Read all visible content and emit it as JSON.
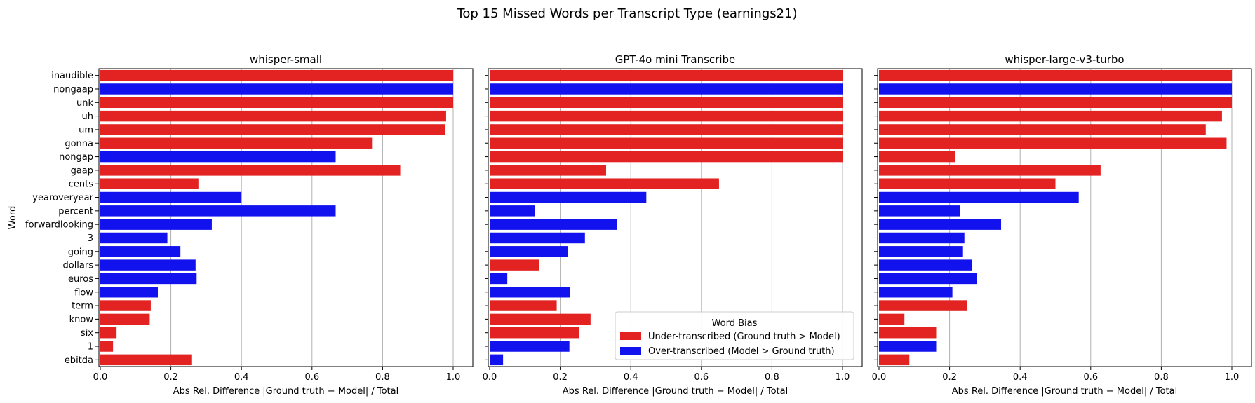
{
  "figure": {
    "suptitle": "Top 15 Missed Words per Transcript Type (earnings21)",
    "legend_title": "Word Bias",
    "legend_items": [
      {
        "label": "Under-transcribed (Ground truth > Model)",
        "color": "#e32222"
      },
      {
        "label": "Over-transcribed (Model > Ground truth)",
        "color": "#1212ee"
      }
    ]
  },
  "colors": {
    "under": "#e32222",
    "over": "#1212ee"
  },
  "chart_data": [
    {
      "type": "bar",
      "orientation": "horizontal",
      "title": "whisper-small",
      "ylabel": "Word",
      "xlabel": "Abs Rel. Difference |Ground truth − Model| / Total",
      "xlim": [
        0,
        1.05
      ],
      "xticks": [
        "0.0",
        "0.2",
        "0.4",
        "0.6",
        "0.8",
        "1.0"
      ],
      "grid": "x",
      "categories": [
        "inaudible",
        "nongaap",
        "unk",
        "uh",
        "um",
        "gonna",
        "nongap",
        "gaap",
        "cents",
        "yearoveryear",
        "percent",
        "forwardlooking",
        "3",
        "going",
        "dollars",
        "euros",
        "flow",
        "term",
        "know",
        "six",
        "1",
        "ebitda"
      ],
      "values": [
        1.0,
        1.0,
        1.0,
        0.98,
        0.978,
        0.77,
        0.667,
        0.85,
        0.278,
        0.4,
        0.667,
        0.316,
        0.19,
        0.227,
        0.27,
        0.273,
        0.163,
        0.143,
        0.14,
        0.046,
        0.036,
        0.258
      ],
      "bias": [
        "under",
        "over",
        "under",
        "under",
        "under",
        "under",
        "over",
        "under",
        "under",
        "over",
        "over",
        "over",
        "over",
        "over",
        "over",
        "over",
        "over",
        "under",
        "under",
        "under",
        "under",
        "under"
      ]
    },
    {
      "type": "bar",
      "orientation": "horizontal",
      "title": "GPT-4o mini Transcribe",
      "xlabel": "Abs Rel. Difference |Ground truth − Model| / Total",
      "xlim": [
        0,
        1.05
      ],
      "xticks": [
        "0.0",
        "0.2",
        "0.4",
        "0.6",
        "0.8",
        "1.0"
      ],
      "grid": "x",
      "legend": "lower-right",
      "categories": [
        "inaudible",
        "nongaap",
        "unk",
        "uh",
        "um",
        "gonna",
        "nongap",
        "gaap",
        "cents",
        "yearoveryear",
        "percent",
        "forwardlooking",
        "3",
        "going",
        "dollars",
        "euros",
        "flow",
        "term",
        "know",
        "six",
        "1",
        "ebitda"
      ],
      "values": [
        1.0,
        1.0,
        1.0,
        1.0,
        1.0,
        1.0,
        1.0,
        0.33,
        0.65,
        0.444,
        0.128,
        0.36,
        0.27,
        0.222,
        0.14,
        0.05,
        0.228,
        0.19,
        0.286,
        0.254,
        0.226,
        0.038
      ],
      "bias": [
        "under",
        "over",
        "under",
        "under",
        "under",
        "under",
        "under",
        "under",
        "under",
        "over",
        "over",
        "over",
        "over",
        "over",
        "under",
        "over",
        "over",
        "under",
        "under",
        "under",
        "over",
        "over"
      ]
    },
    {
      "type": "bar",
      "orientation": "horizontal",
      "title": "whisper-large-v3-turbo",
      "xlabel": "Abs Rel. Difference |Ground truth − Model| / Total",
      "xlim": [
        0,
        1.05
      ],
      "xticks": [
        "0.0",
        "0.2",
        "0.4",
        "0.6",
        "0.8",
        "1.0"
      ],
      "grid": "x",
      "categories": [
        "inaudible",
        "nongaap",
        "unk",
        "uh",
        "um",
        "gonna",
        "nongap",
        "gaap",
        "cents",
        "yearoveryear",
        "percent",
        "forwardlooking",
        "3",
        "going",
        "dollars",
        "euros",
        "flow",
        "term",
        "know",
        "six",
        "1",
        "ebitda"
      ],
      "values": [
        1.0,
        1.0,
        1.0,
        0.972,
        0.926,
        0.985,
        0.216,
        0.628,
        0.5,
        0.566,
        0.23,
        0.346,
        0.242,
        0.238,
        0.264,
        0.278,
        0.208,
        0.25,
        0.072,
        0.162,
        0.162,
        0.086
      ],
      "bias": [
        "under",
        "over",
        "under",
        "under",
        "under",
        "under",
        "under",
        "under",
        "under",
        "over",
        "over",
        "over",
        "over",
        "over",
        "over",
        "over",
        "over",
        "under",
        "under",
        "under",
        "over",
        "under"
      ]
    }
  ]
}
